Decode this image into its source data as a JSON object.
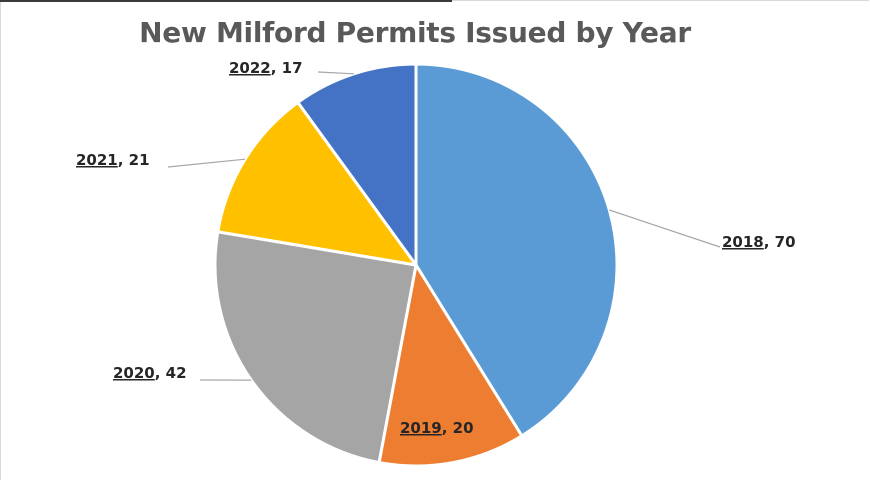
{
  "chart_data": {
    "type": "pie",
    "title": "New Milford Permits Issued by Year",
    "categories": [
      "2018",
      "2019",
      "2020",
      "2021",
      "2022"
    ],
    "values": [
      70,
      20,
      42,
      21,
      17
    ],
    "colors": [
      "#5b9bd5",
      "#ed7d31",
      "#a5a5a5",
      "#ffc000",
      "#4472c4"
    ],
    "labels": [
      "2018, 70",
      "2019, 20",
      "2020, 42",
      "2021, 21",
      "2022, 17"
    ],
    "start_angle": "12 o'clock",
    "direction": "clockwise",
    "legend": "none"
  }
}
